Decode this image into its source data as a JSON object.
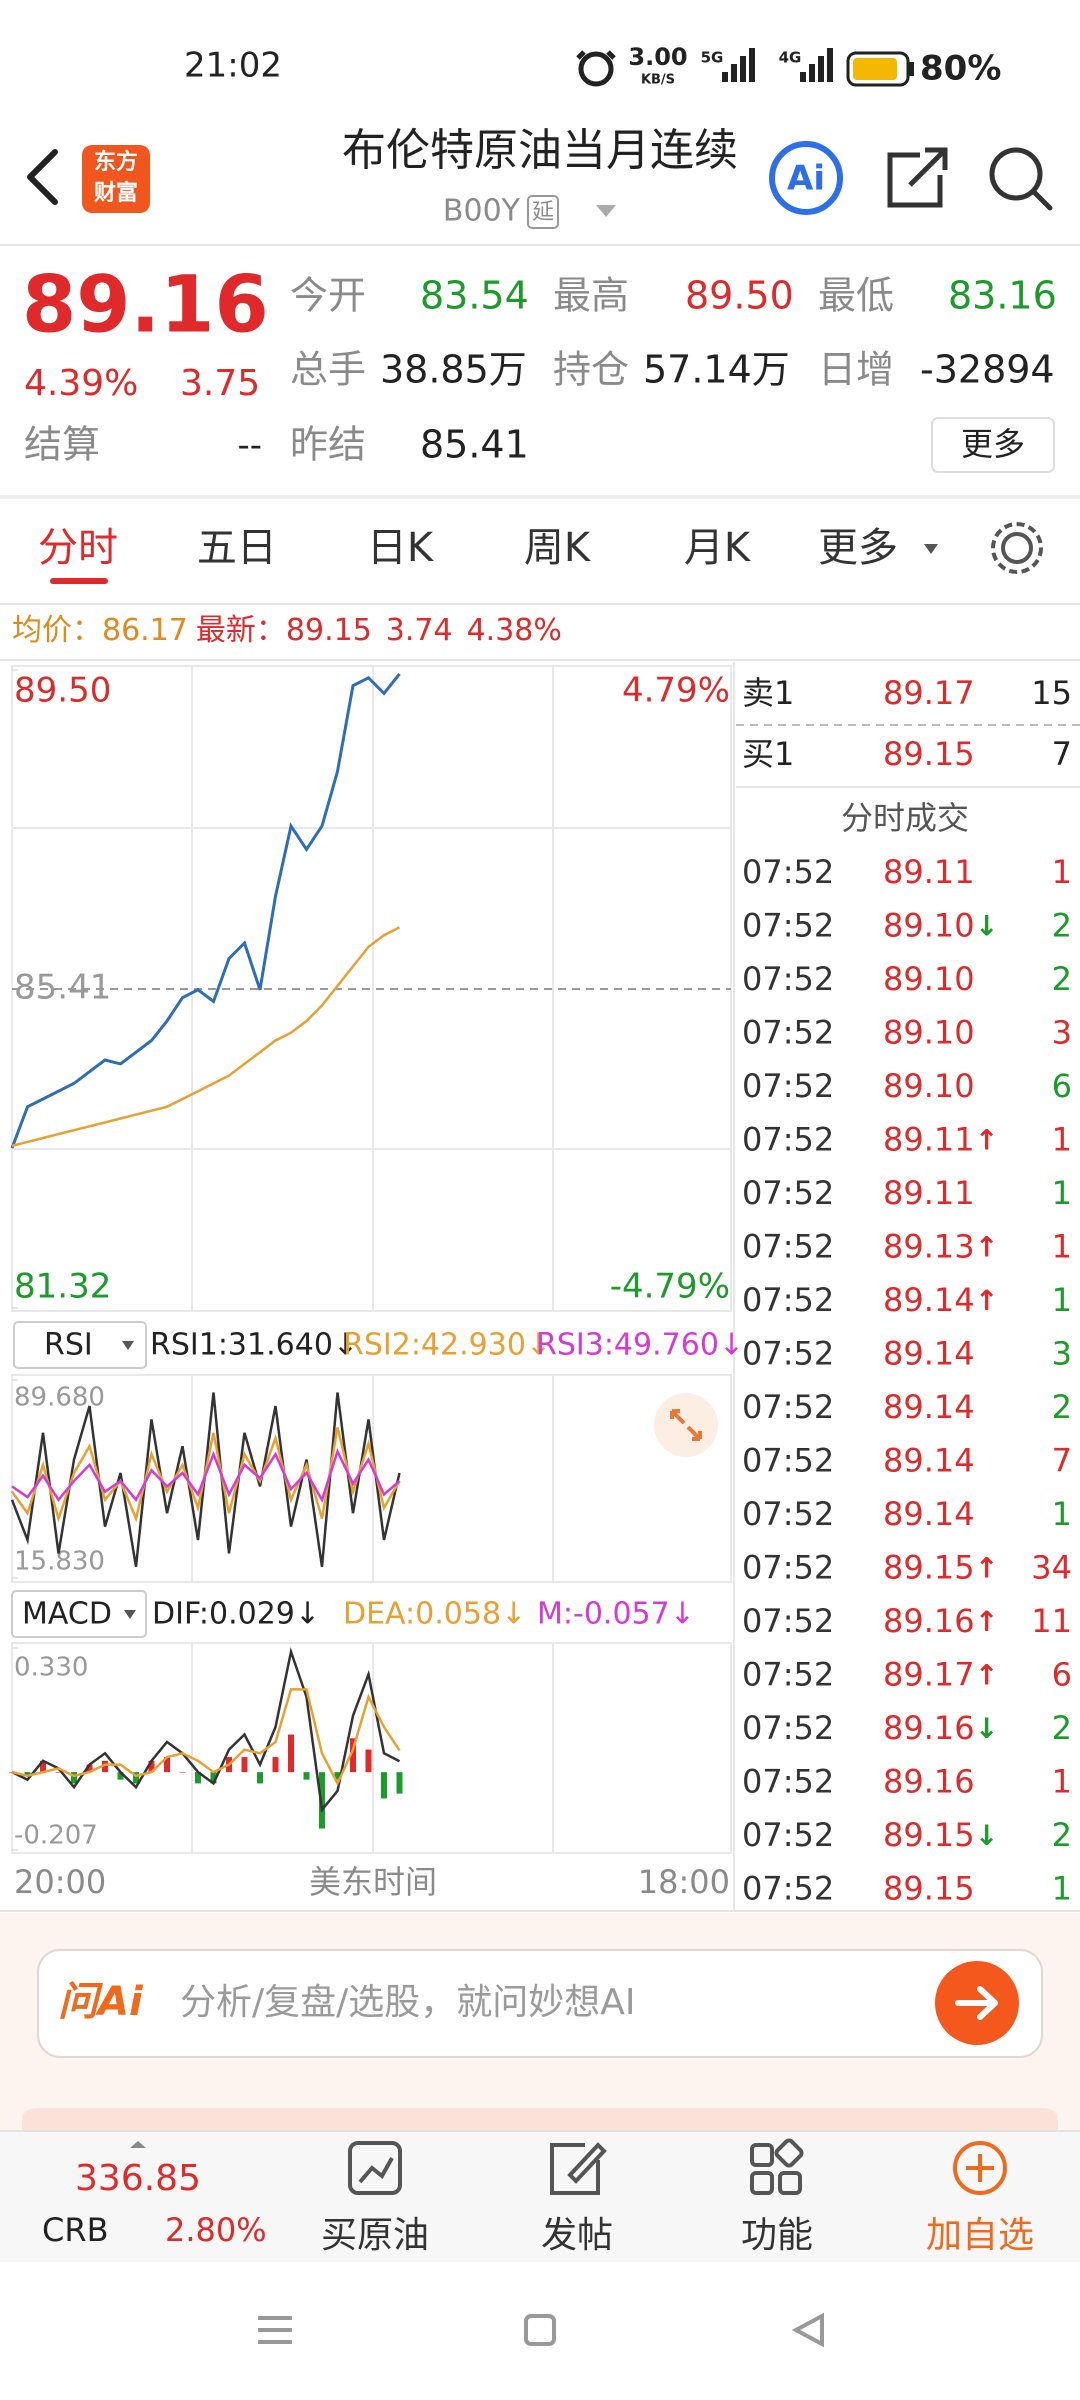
{
  "status_bar": {
    "time": "21:02",
    "net_speed": "3.00",
    "net_unit": "KB/S",
    "signal_a": "5G",
    "signal_b": "4G",
    "battery": "80%"
  },
  "header": {
    "logo_top": "东方",
    "logo_bottom": "财富",
    "title": "布伦特原油当月连续",
    "code": "B00Y",
    "tag": "延",
    "ai": "Ai"
  },
  "quote": {
    "price": "89.16",
    "change_pct": "4.39%",
    "change": "3.75",
    "fields": [
      {
        "label": "今开",
        "value": "83.54",
        "color": "#1a9b2a"
      },
      {
        "label": "最高",
        "value": "89.50",
        "color": "#e0292b"
      },
      {
        "label": "最低",
        "value": "83.16",
        "color": "#1a9b2a"
      },
      {
        "label": "总手",
        "value": "38.85万",
        "color": "#222222"
      },
      {
        "label": "持仓",
        "value": "57.14万",
        "color": "#222222"
      },
      {
        "label": "日增",
        "value": "-32894",
        "color": "#222222"
      }
    ],
    "settle_label": "结算",
    "settle": "--",
    "prev_settle_label": "昨结",
    "prev_settle": "85.41",
    "more": "更多"
  },
  "tabs": [
    "分时",
    "五日",
    "日K",
    "周K",
    "月K",
    "更多"
  ],
  "intraday": {
    "info": {
      "avg_label": "均价：",
      "avg": "86.17",
      "latest_label": "最新：",
      "latest": "89.15",
      "change": "3.74",
      "change_pct": "4.38%"
    },
    "chart": {
      "type": "line",
      "ylim": [
        81.32,
        89.5
      ],
      "yticks": [
        {
          "value": 89.5,
          "label": "89.50"
        },
        {
          "value": 81.32,
          "label": "81.32"
        }
      ],
      "ref": {
        "value": 85.41,
        "label": "85.41"
      },
      "pct_labels": [
        "4.79%",
        "-4.79%"
      ],
      "series": [
        {
          "color": "#2f6db5",
          "values": [
            83.37,
            83.9,
            84.0,
            84.1,
            84.2,
            84.35,
            84.5,
            84.45,
            84.6,
            84.75,
            85.0,
            85.3,
            85.4,
            85.25,
            85.8,
            86.0,
            85.4,
            86.6,
            87.5,
            87.2,
            87.5,
            88.2,
            89.3,
            89.4,
            89.2,
            89.45
          ]
        },
        {
          "color": "#e8a033",
          "values": [
            83.4,
            83.45,
            83.5,
            83.55,
            83.6,
            83.65,
            83.7,
            83.75,
            83.8,
            83.85,
            83.9,
            84.0,
            84.1,
            84.2,
            84.3,
            84.45,
            84.6,
            84.75,
            84.85,
            85.0,
            85.2,
            85.45,
            85.7,
            85.95,
            86.1,
            86.2
          ]
        }
      ]
    },
    "rsi": {
      "selector": "RSI",
      "labels": [
        {
          "text": "RSI1:31.640↓",
          "color": "#222222"
        },
        {
          "text": "RSI2:42.930↓",
          "color": "#e8a033"
        },
        {
          "text": "RSI3:49.760↓",
          "color": "#d63ad6"
        }
      ],
      "ylim": [
        15.83,
        89.68
      ],
      "yticks": [
        {
          "value": 89.68,
          "label": "89.680"
        },
        {
          "value": 15.83,
          "label": "15.830"
        }
      ],
      "series": [
        {
          "color": "#333333",
          "values": [
            45,
            30,
            70,
            25,
            60,
            80,
            35,
            55,
            20,
            75,
            40,
            65,
            30,
            85,
            25,
            70,
            50,
            80,
            35,
            60,
            20,
            85,
            40,
            75,
            30,
            55
          ]
        },
        {
          "color": "#e8a033",
          "values": [
            48,
            40,
            58,
            38,
            55,
            65,
            45,
            52,
            38,
            62,
            48,
            58,
            42,
            70,
            40,
            62,
            52,
            68,
            45,
            58,
            38,
            72,
            48,
            66,
            42,
            52
          ]
        },
        {
          "color": "#d63ad6",
          "values": [
            50,
            46,
            54,
            45,
            52,
            58,
            48,
            52,
            45,
            56,
            50,
            55,
            47,
            62,
            47,
            58,
            53,
            62,
            49,
            55,
            45,
            63,
            51,
            60,
            47,
            52
          ]
        }
      ]
    },
    "macd": {
      "selector": "MACD",
      "labels": [
        {
          "text": "DIF:0.029↓",
          "color": "#222222"
        },
        {
          "text": "DEA:0.058↓",
          "color": "#e8a033"
        },
        {
          "text": "M:-0.057↓",
          "color": "#d63ad6"
        }
      ],
      "ylim": [
        -0.207,
        0.33
      ],
      "yticks": [
        {
          "value": 0.33,
          "label": "0.330"
        },
        {
          "value": -0.207,
          "label": "-0.207"
        }
      ],
      "series": [
        {
          "color": "#333333",
          "values": [
            0.0,
            -0.02,
            0.03,
            0.01,
            -0.04,
            0.02,
            0.05,
            0.0,
            -0.04,
            0.03,
            0.08,
            0.05,
            0.0,
            -0.03,
            0.06,
            0.1,
            0.02,
            0.12,
            0.32,
            0.2,
            -0.1,
            -0.05,
            0.15,
            0.26,
            0.05,
            0.029
          ]
        },
        {
          "color": "#e8a033",
          "values": [
            0.0,
            -0.01,
            0.0,
            0.01,
            -0.01,
            0.0,
            0.02,
            0.02,
            -0.01,
            0.0,
            0.04,
            0.05,
            0.03,
            0.0,
            0.02,
            0.06,
            0.05,
            0.08,
            0.22,
            0.22,
            0.05,
            -0.03,
            0.06,
            0.2,
            0.12,
            0.058
          ]
        }
      ],
      "bars": {
        "up_color": "#e0292b",
        "down_color": "#1a9b2a",
        "values": [
          0.0,
          -0.01,
          0.03,
          0.0,
          -0.03,
          0.02,
          0.03,
          -0.02,
          -0.03,
          0.03,
          0.04,
          0.0,
          -0.03,
          -0.03,
          0.04,
          0.04,
          -0.03,
          0.04,
          0.1,
          -0.02,
          -0.15,
          -0.02,
          0.09,
          0.06,
          -0.07,
          -0.057
        ]
      }
    },
    "x_labels": [
      "20:00",
      "美东时间",
      "18:00"
    ]
  },
  "order_book": {
    "sell1": {
      "label": "卖1",
      "price": "89.17",
      "volume": "15"
    },
    "buy1": {
      "label": "买1",
      "price": "89.15",
      "volume": "7"
    },
    "trades_title": "分时成交",
    "trades": [
      {
        "time": "07:52",
        "price": "89.11",
        "volume": "1",
        "color": "#e0292b"
      },
      {
        "time": "07:52",
        "price": "89.10",
        "arrow": "↓",
        "arrow_color": "#1a9b2a",
        "volume": "2",
        "color": "#1a9b2a"
      },
      {
        "time": "07:52",
        "price": "89.10",
        "volume": "2",
        "color": "#1a9b2a"
      },
      {
        "time": "07:52",
        "price": "89.10",
        "volume": "3",
        "color": "#e0292b"
      },
      {
        "time": "07:52",
        "price": "89.10",
        "volume": "6",
        "color": "#1a9b2a"
      },
      {
        "time": "07:52",
        "price": "89.11",
        "arrow": "↑",
        "arrow_color": "#e0292b",
        "volume": "1",
        "color": "#e0292b"
      },
      {
        "time": "07:52",
        "price": "89.11",
        "volume": "1",
        "color": "#1a9b2a"
      },
      {
        "time": "07:52",
        "price": "89.13",
        "arrow": "↑",
        "arrow_color": "#e0292b",
        "volume": "1",
        "color": "#e0292b"
      },
      {
        "time": "07:52",
        "price": "89.14",
        "arrow": "↑",
        "arrow_color": "#e0292b",
        "volume": "1",
        "color": "#1a9b2a"
      },
      {
        "time": "07:52",
        "price": "89.14",
        "volume": "3",
        "color": "#1a9b2a"
      },
      {
        "time": "07:52",
        "price": "89.14",
        "volume": "2",
        "color": "#1a9b2a"
      },
      {
        "time": "07:52",
        "price": "89.14",
        "volume": "7",
        "color": "#e0292b"
      },
      {
        "time": "07:52",
        "price": "89.14",
        "volume": "1",
        "color": "#1a9b2a"
      },
      {
        "time": "07:52",
        "price": "89.15",
        "arrow": "↑",
        "arrow_color": "#e0292b",
        "volume": "34",
        "color": "#e0292b"
      },
      {
        "time": "07:52",
        "price": "89.16",
        "arrow": "↑",
        "arrow_color": "#e0292b",
        "volume": "11",
        "color": "#e0292b"
      },
      {
        "time": "07:52",
        "price": "89.17",
        "arrow": "↑",
        "arrow_color": "#e0292b",
        "volume": "6",
        "color": "#e0292b"
      },
      {
        "time": "07:52",
        "price": "89.16",
        "arrow": "↓",
        "arrow_color": "#1a9b2a",
        "volume": "2",
        "color": "#1a9b2a"
      },
      {
        "time": "07:52",
        "price": "89.16",
        "volume": "1",
        "color": "#e0292b"
      },
      {
        "time": "07:52",
        "price": "89.15",
        "arrow": "↓",
        "arrow_color": "#1a9b2a",
        "volume": "2",
        "color": "#1a9b2a"
      },
      {
        "time": "07:52",
        "price": "89.15",
        "volume": "1",
        "color": "#1a9b2a"
      }
    ]
  },
  "ai_box": {
    "logo": "问Ai",
    "placeholder": "分析/复盘/选股，就问妙想AI"
  },
  "bottom_nav": {
    "index_value": "336.85",
    "index_name": "CRB",
    "index_change": "2.80%",
    "items": [
      "买原油",
      "发帖",
      "功能",
      "加自选"
    ]
  }
}
